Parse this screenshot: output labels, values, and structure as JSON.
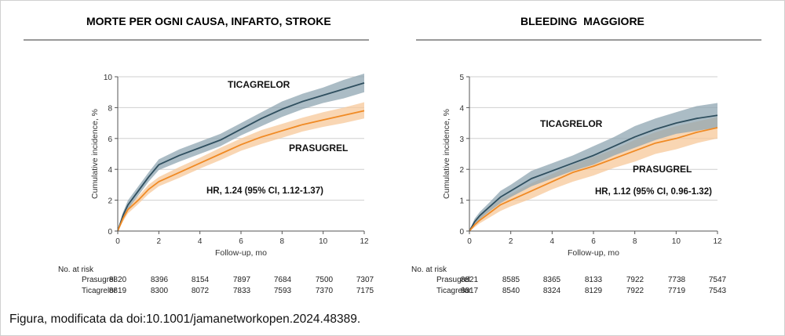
{
  "caption": "Figura, modificata da doi:10.1001/jamanetworkopen.2024.48389.",
  "colors": {
    "ticagrelor": "#2f4f5f",
    "ticagrelor_band": "#8fa6b2",
    "prasugrel": "#f08a24",
    "prasugrel_band": "#f7c89a",
    "grid": "#cfcfcf"
  },
  "panels": [
    {
      "title": "MORTE PER OGNI CAUSA, INFARTO, STROKE",
      "annotations": {
        "ticagrelor": "TICAGRELOR",
        "prasugrel": "PRASUGREL",
        "hr": "HR, 1.24 (95% CI, 1.12-1.37)"
      },
      "at_risk": {
        "header": "No. at risk",
        "rows": [
          {
            "name": "Prasugrel",
            "values": [
              "8820",
              "8396",
              "8154",
              "7897",
              "7684",
              "7500",
              "7307"
            ]
          },
          {
            "name": "Ticagrelor",
            "values": [
              "8819",
              "8300",
              "8072",
              "7833",
              "7593",
              "7370",
              "7175"
            ]
          }
        ]
      }
    },
    {
      "title": "BLEEDING  MAGGIORE",
      "annotations": {
        "ticagrelor": "TICAGRELOR",
        "prasugrel": "PRASUGREL",
        "hr": "HR, 1.12 (95% CI, 0.96-1.32)"
      },
      "at_risk": {
        "header": "No. at risk",
        "rows": [
          {
            "name": "Prasugrel",
            "values": [
              "8821",
              "8585",
              "8365",
              "8133",
              "7922",
              "7738",
              "7547"
            ]
          },
          {
            "name": "Ticagrelor",
            "values": [
              "8817",
              "8540",
              "8324",
              "8129",
              "7922",
              "7719",
              "7543"
            ]
          }
        ]
      }
    }
  ],
  "chart_data": [
    {
      "type": "line",
      "xlabel": "Follow-up, mo",
      "ylabel": "Cumulative incidence, %",
      "xlim": [
        0,
        12
      ],
      "ylim": [
        0,
        10
      ],
      "xticks": [
        0,
        2,
        4,
        6,
        8,
        10,
        12
      ],
      "yticks": [
        0,
        2,
        4,
        6,
        8,
        10
      ],
      "grid": true,
      "series": [
        {
          "name": "TICAGRELOR",
          "x": [
            0,
            0.25,
            0.5,
            1,
            1.5,
            2,
            3,
            4,
            5,
            6,
            7,
            8,
            9,
            10,
            11,
            12
          ],
          "y": [
            0,
            1.0,
            1.7,
            2.6,
            3.5,
            4.3,
            4.9,
            5.4,
            5.9,
            6.6,
            7.3,
            7.9,
            8.4,
            8.8,
            9.2,
            9.6
          ],
          "lower": [
            0,
            0.8,
            1.4,
            2.3,
            3.2,
            3.95,
            4.5,
            5.0,
            5.5,
            6.2,
            6.8,
            7.4,
            7.9,
            8.3,
            8.6,
            9.0
          ],
          "upper": [
            0,
            1.2,
            2.0,
            2.9,
            3.8,
            4.65,
            5.3,
            5.8,
            6.3,
            7.0,
            7.7,
            8.4,
            8.9,
            9.3,
            9.8,
            10.2
          ]
        },
        {
          "name": "PRASUGREL",
          "x": [
            0,
            0.25,
            0.5,
            1,
            1.5,
            2,
            3,
            4,
            5,
            6,
            7,
            8,
            9,
            10,
            11,
            12
          ],
          "y": [
            0,
            0.8,
            1.4,
            2.0,
            2.7,
            3.2,
            3.8,
            4.4,
            5.0,
            5.6,
            6.1,
            6.5,
            6.9,
            7.2,
            7.5,
            7.8
          ],
          "lower": [
            0,
            0.6,
            1.15,
            1.75,
            2.4,
            2.9,
            3.45,
            4.05,
            4.6,
            5.2,
            5.65,
            6.05,
            6.45,
            6.75,
            7.0,
            7.3
          ],
          "upper": [
            0,
            1.0,
            1.65,
            2.25,
            3.0,
            3.5,
            4.15,
            4.75,
            5.4,
            6.0,
            6.55,
            6.95,
            7.35,
            7.7,
            8.0,
            8.35
          ]
        }
      ]
    },
    {
      "type": "line",
      "xlabel": "Follow-up, mo",
      "ylabel": "Cumulative incidence, %",
      "xlim": [
        0,
        12
      ],
      "ylim": [
        0,
        5
      ],
      "xticks": [
        0,
        2,
        4,
        6,
        8,
        10,
        12
      ],
      "yticks": [
        0,
        1,
        2,
        3,
        4,
        5
      ],
      "grid": true,
      "series": [
        {
          "name": "TICAGRELOR",
          "x": [
            0,
            0.25,
            0.5,
            1,
            1.5,
            2,
            3,
            4,
            5,
            6,
            7,
            8,
            9,
            10,
            11,
            12
          ],
          "y": [
            0,
            0.3,
            0.5,
            0.8,
            1.1,
            1.3,
            1.7,
            1.95,
            2.2,
            2.45,
            2.75,
            3.05,
            3.3,
            3.5,
            3.65,
            3.75
          ],
          "lower": [
            0,
            0.2,
            0.38,
            0.65,
            0.9,
            1.1,
            1.45,
            1.7,
            1.95,
            2.15,
            2.45,
            2.7,
            2.95,
            3.15,
            3.25,
            3.35
          ],
          "upper": [
            0,
            0.4,
            0.62,
            0.95,
            1.3,
            1.5,
            1.95,
            2.2,
            2.45,
            2.75,
            3.05,
            3.4,
            3.65,
            3.85,
            4.05,
            4.15
          ]
        },
        {
          "name": "PRASUGREL",
          "x": [
            0,
            0.25,
            0.5,
            1,
            1.5,
            2,
            3,
            4,
            5,
            6,
            7,
            8,
            9,
            10,
            11,
            12
          ],
          "y": [
            0,
            0.2,
            0.35,
            0.6,
            0.85,
            1.0,
            1.3,
            1.6,
            1.9,
            2.1,
            2.35,
            2.6,
            2.85,
            3.0,
            3.2,
            3.35
          ],
          "lower": [
            0,
            0.12,
            0.25,
            0.45,
            0.65,
            0.8,
            1.05,
            1.35,
            1.6,
            1.8,
            2.05,
            2.25,
            2.5,
            2.65,
            2.85,
            3.0
          ],
          "upper": [
            0,
            0.3,
            0.48,
            0.75,
            1.05,
            1.2,
            1.55,
            1.85,
            2.15,
            2.4,
            2.65,
            2.95,
            3.2,
            3.4,
            3.55,
            3.7
          ]
        }
      ]
    }
  ]
}
